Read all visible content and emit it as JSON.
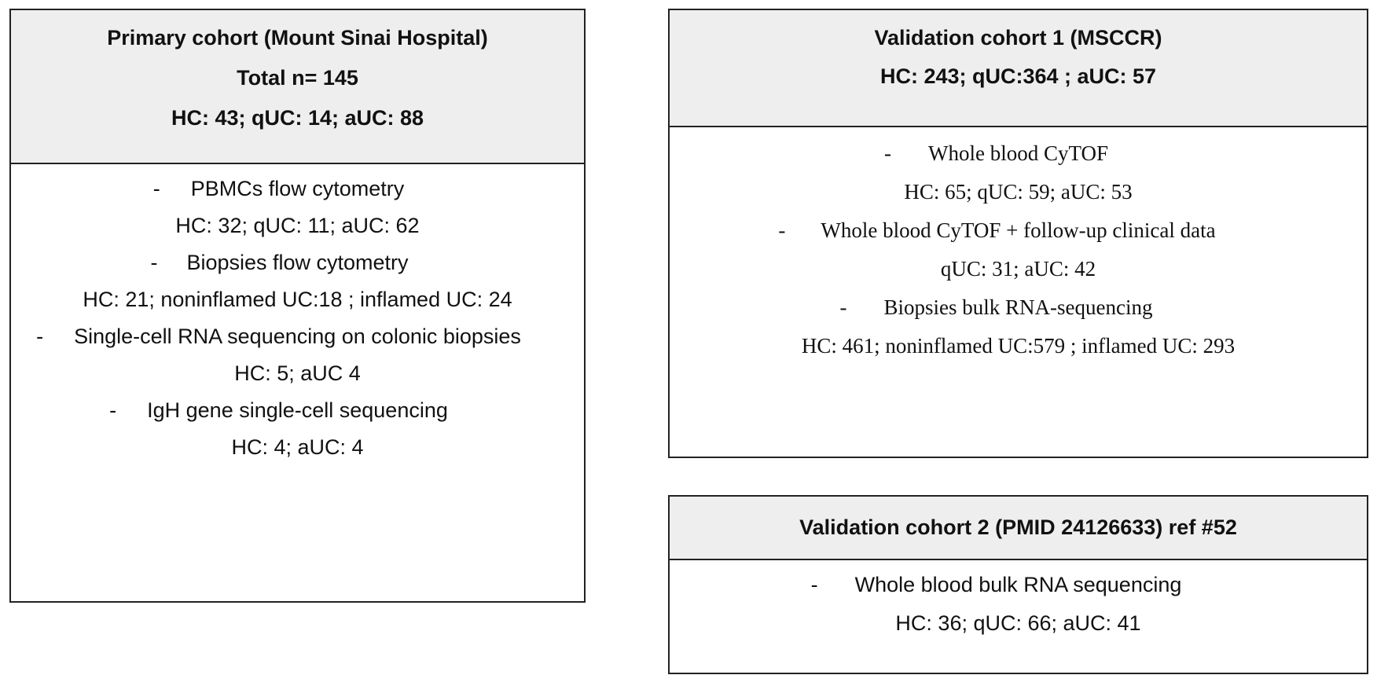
{
  "primary": {
    "title": "Primary cohort (Mount Sinai Hospital)",
    "total": "Total n= 145",
    "counts": "HC: 43; qUC: 14; aUC: 88",
    "items": [
      {
        "bullet": "-",
        "label": "PBMCs flow cytometry",
        "counts": "HC: 32; qUC: 11; aUC: 62"
      },
      {
        "bullet": "-",
        "label": "Biopsies flow cytometry",
        "counts": "HC: 21; noninflamed UC:18 ; inflamed UC: 24"
      },
      {
        "bullet": "-",
        "label": "Single-cell RNA sequencing on colonic biopsies",
        "counts": "HC: 5; aUC 4"
      },
      {
        "bullet": "-",
        "label": "IgH gene single-cell sequencing",
        "counts": "HC: 4; aUC: 4"
      }
    ]
  },
  "validation1": {
    "title": "Validation cohort 1 (MSCCR)",
    "counts": "HC: 243; qUC:364 ; aUC: 57",
    "items": [
      {
        "bullet": "-",
        "label": "Whole blood CyTOF",
        "counts": "HC: 65; qUC: 59; aUC: 53"
      },
      {
        "bullet": "-",
        "label": "Whole blood CyTOF + follow-up clinical data",
        "counts": "qUC: 31; aUC: 42"
      },
      {
        "bullet": "-",
        "label": "Biopsies bulk RNA-sequencing",
        "counts": "HC: 461; noninflamed UC:579 ; inflamed UC: 293"
      }
    ]
  },
  "validation2": {
    "title": "Validation cohort 2 (PMID 24126633) ref #52",
    "items": [
      {
        "bullet": "-",
        "label": "Whole blood bulk RNA sequencing",
        "counts": "HC: 36; qUC: 66; aUC: 41"
      }
    ]
  }
}
